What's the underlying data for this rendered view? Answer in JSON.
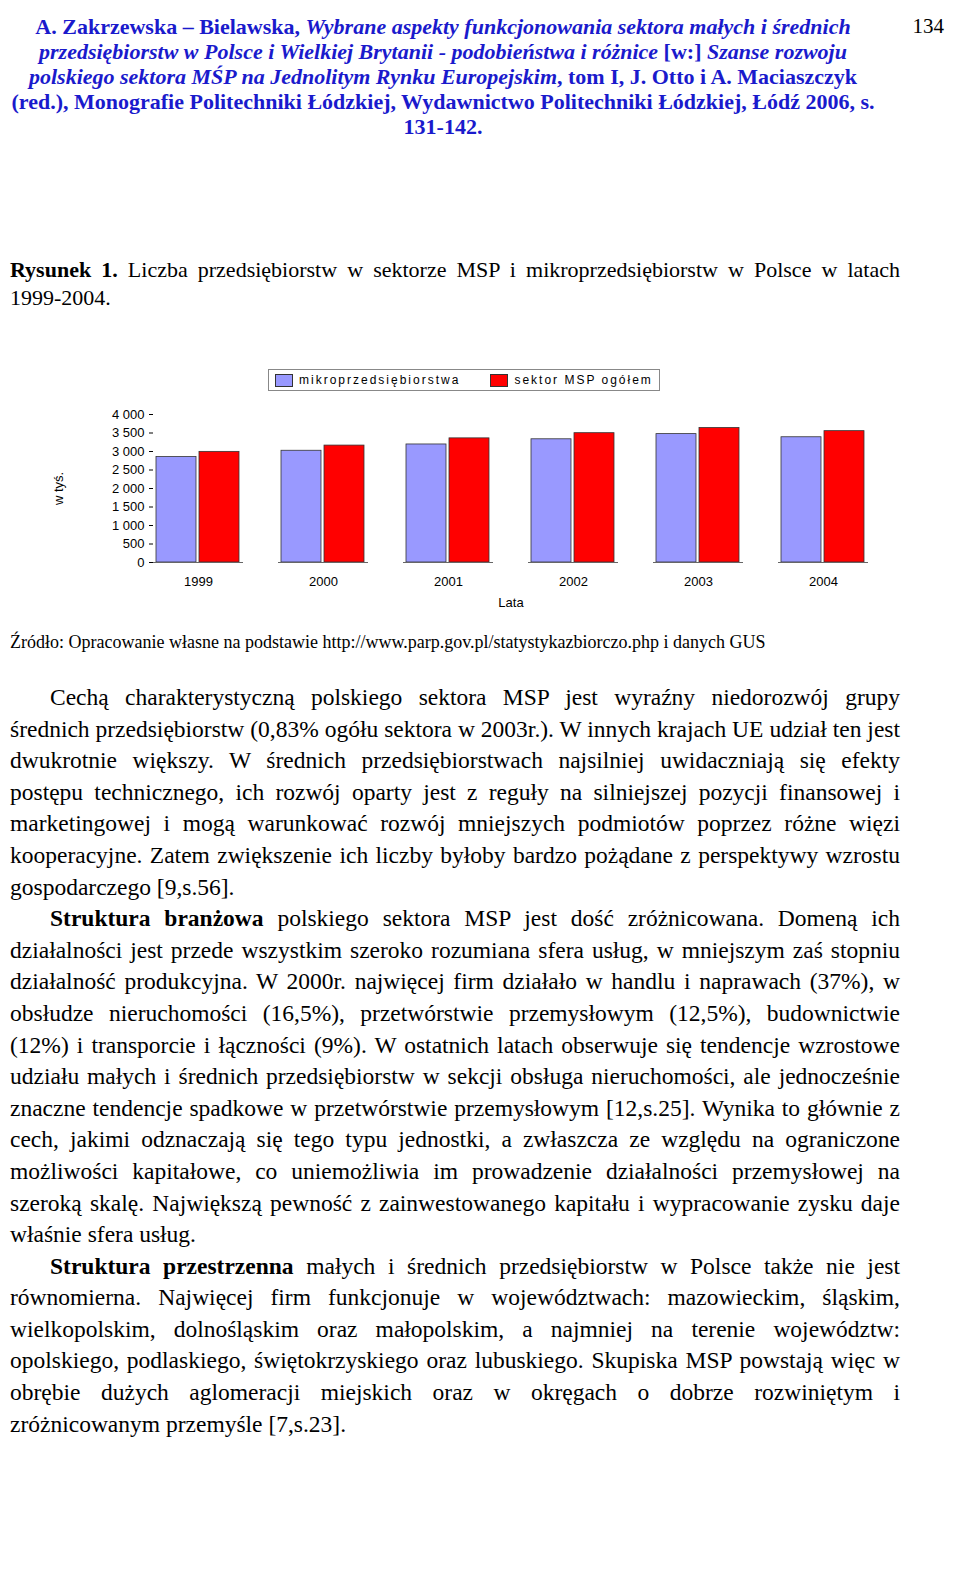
{
  "page_number": "134",
  "header": [
    {
      "text": "A. Zakrzewska – Bielawska, ",
      "style": "normal"
    },
    {
      "text": "Wybrane aspekty funkcjonowania sektora małych i średnich przedsiębiorstw w Polsce i Wielkiej Brytanii - podobieństwa i różnice",
      "style": "italic"
    },
    {
      "text": " [w:] ",
      "style": "normal"
    },
    {
      "text": "Szanse rozwoju polskiego sektora MŚP na Jednolitym Rynku Europejskim",
      "style": "italic"
    },
    {
      "text": ", tom I, J. Otto i A. Maciaszczyk (red.), Monografie Politechniki Łódzkiej, Wydawnictwo Politechniki Łódzkiej, Łódź 2006, s. 131-142.",
      "style": "normal"
    }
  ],
  "figure": {
    "label": "Rysunek 1.",
    "caption": "Liczba przedsiębiorstw w sektorze MSP i mikroprzedsiębiorstw w Polsce w latach 1999-2004.",
    "source_label": "Źródło:",
    "source": "Opracowanie własne na podstawie http://www.parp.gov.pl/statystykazbiorczo.php i danych GUS"
  },
  "chart_data": {
    "type": "bar",
    "x_label": "Lata",
    "y_label": "w tyś.",
    "categories": [
      "1999",
      "2000",
      "2001",
      "2002",
      "2003",
      "2004"
    ],
    "series": [
      {
        "name": "mikroprzedsiębiorstwa",
        "color": "#9999ff",
        "values": [
          2850,
          3020,
          3190,
          3330,
          3470,
          3385
        ]
      },
      {
        "name": "sektor MSP ogółem",
        "color": "#ff0000",
        "values": [
          2990,
          3160,
          3355,
          3495,
          3635,
          3550
        ]
      }
    ],
    "ylim": [
      0,
      4000
    ],
    "yticks": [
      0,
      500,
      {
        "value": 1000,
        "label": "1 000"
      },
      {
        "value": 1500,
        "label": "1 500"
      },
      {
        "value": 2000,
        "label": "2 000"
      },
      {
        "value": 2500,
        "label": "2 500"
      },
      {
        "value": 3000,
        "label": "3 000"
      },
      {
        "value": 3500,
        "label": "3 500"
      },
      {
        "value": 4000,
        "label": "4 000"
      }
    ],
    "grid": false,
    "legend": "top"
  },
  "paragraphs": [
    [
      {
        "text": "Cechą charakterystyczną polskiego sektora MSP jest wyraźny niedorozwój grupy średnich przedsiębiorstw (0,83% ogółu sektora w 2003r.). W innych krajach UE udział ten jest dwukrotnie większy. W średnich przedsiębiorstwach najsilniej uwidaczniają się efekty postępu technicznego, ich rozwój oparty jest z reguły na silniejszej pozycji finansowej i marketingowej i mogą warunkować rozwój mniejszych podmiotów poprzez różne więzi kooperacyjne. Zatem zwiększenie ich liczby byłoby bardzo pożądane z perspektywy wzrostu gospodarczego [9,s.56].",
        "style": "normal"
      }
    ],
    [
      {
        "text": "Struktura branżowa",
        "style": "bold"
      },
      {
        "text": " polskiego sektora MSP jest dość zróżnicowana. Domeną ich działalności jest przede wszystkim szeroko rozumiana sfera usług, w mniejszym zaś stopniu działalność produkcyjna. W 2000r. najwięcej firm działało w handlu i naprawach (37%), w obsłudze nieruchomości (16,5%), przetwórstwie przemysłowym (12,5%), budownictwie (12%) i transporcie i łączności (9%). W ostatnich latach obserwuje się tendencje wzrostowe udziału małych i średnich przedsiębiorstw w sekcji obsługa nieruchomości, ale jednocześnie znaczne tendencje spadkowe w przetwórstwie przemysłowym [12,s.25]. Wynika to głównie z cech, jakimi odznaczają się tego typu jednostki, a zwłaszcza ze względu na ograniczone możliwości kapitałowe, co uniemożliwia im prowadzenie działalności przemysłowej na szeroką skalę. Największą pewność z zainwestowanego kapitału i wypracowanie zysku daje właśnie sfera usług.",
        "style": "normal"
      }
    ],
    [
      {
        "text": "Struktura przestrzenna",
        "style": "bold"
      },
      {
        "text": " małych i średnich przedsiębiorstw w Polsce także nie jest równomierna. Najwięcej firm funkcjonuje w województwach: mazowieckim, śląskim, wielkopolskim, dolnośląskim oraz małopolskim, a najmniej na terenie województw: opolskiego, podlaskiego, świętokrzyskiego oraz lubuskiego. Skupiska MSP powstają więc w obrębie dużych aglomeracji miejskich oraz w okręgach o dobrze rozwiniętym i zróżnicowanym przemyśle [7,s.23].",
        "style": "normal"
      }
    ]
  ]
}
